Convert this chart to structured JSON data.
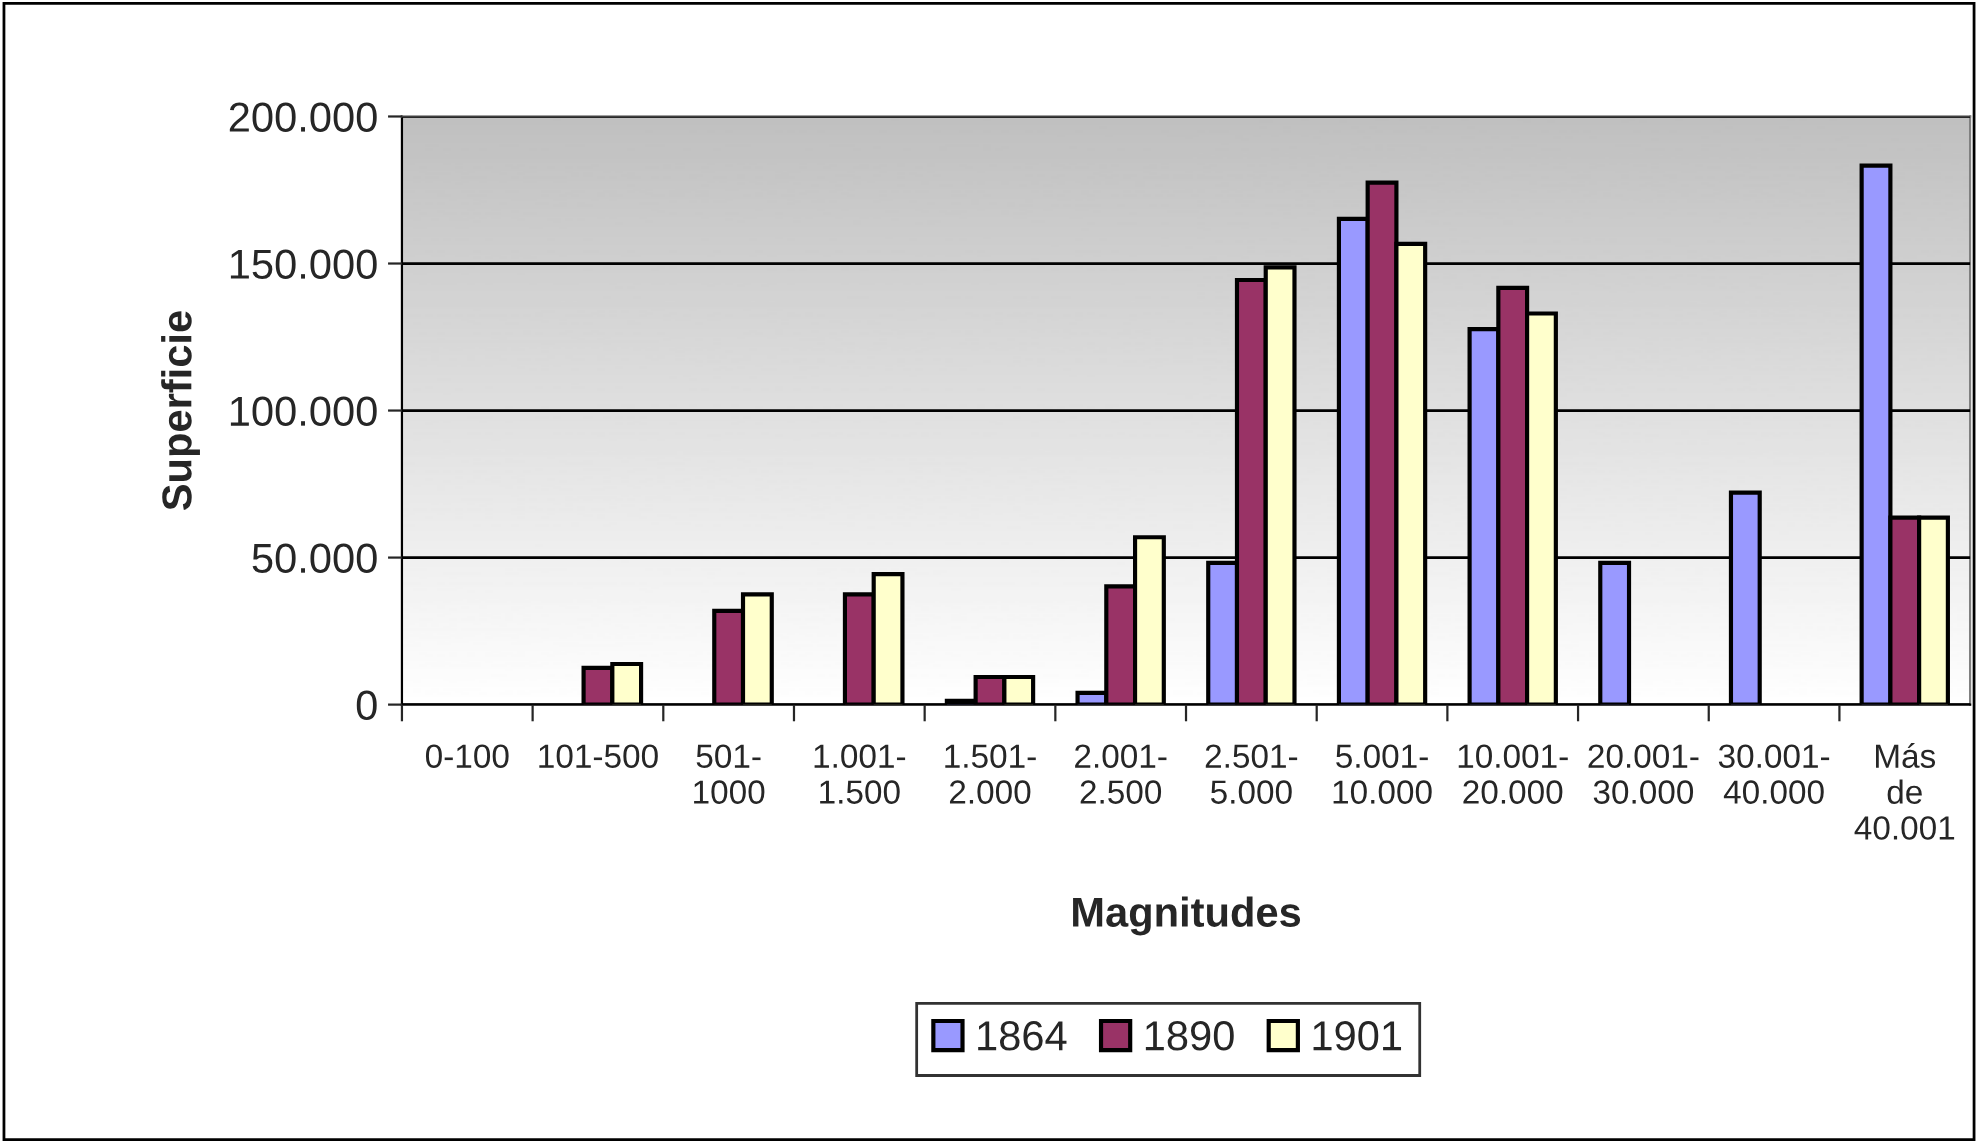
{
  "chart_data": {
    "type": "bar",
    "xlabel": "Magnitudes",
    "ylabel": "Superficie",
    "categories": [
      "0-100",
      "101-500",
      "501-\n1000",
      "1.001-\n1.500",
      "1.501-\n2.000",
      "2.001-\n2.500",
      "2.501-\n5.000",
      "5.001-\n10.000",
      "10.001-\n20.000",
      "20.001-\n30.000",
      "30.001-\n40.000",
      "Más\nde\n40.001"
    ],
    "series": [
      {
        "name": "1864",
        "color": "#9999ff",
        "values": [
          null,
          null,
          null,
          null,
          1300,
          4000,
          48200,
          165200,
          127700,
          48200,
          72100,
          183300
        ]
      },
      {
        "name": "1890",
        "color": "#993366",
        "values": [
          null,
          12500,
          31900,
          37500,
          9400,
          40200,
          144400,
          177500,
          141700,
          null,
          null,
          63600
        ]
      },
      {
        "name": "1901",
        "color": "#ffffcc",
        "values": [
          null,
          13800,
          37500,
          44400,
          9400,
          56900,
          148700,
          156700,
          133000,
          null,
          null,
          63600
        ]
      }
    ],
    "ylim": [
      0,
      200000
    ],
    "yticks": [
      {
        "value": 0,
        "label": "0"
      },
      {
        "value": 50000,
        "label": "50.000"
      },
      {
        "value": 100000,
        "label": "100.000"
      },
      {
        "value": 150000,
        "label": "150.000"
      },
      {
        "value": 200000,
        "label": "200.000"
      }
    ],
    "grid": "y",
    "legend": "bottom"
  }
}
